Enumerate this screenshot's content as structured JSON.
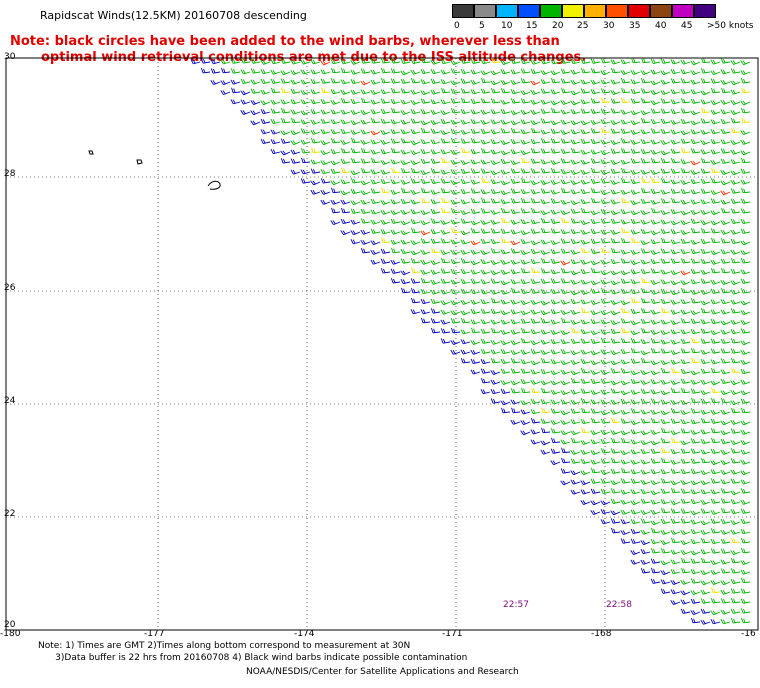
{
  "title": "Rapidscat Winds(12.5KM) 20160708 descending",
  "note": {
    "line1": "Note: black circles have been added to the wind barbs, wherever less than",
    "line2": "optimal wind retrieval conditions are met due to the ISS altitude changes."
  },
  "colorbar": {
    "labels": [
      "0",
      "5",
      "10",
      "15",
      "20",
      "25",
      "30",
      "35",
      "40",
      "45",
      ">50 knots"
    ],
    "colors": [
      "#3a3a3a",
      "#8a8a8a",
      "#00b4ff",
      "#0050ff",
      "#00b400",
      "#f0f000",
      "#ffb000",
      "#ff5000",
      "#e00000",
      "#8b4513",
      "#c000c0",
      "#400080"
    ]
  },
  "axes": {
    "lat_labels": [
      "30",
      "28",
      "26",
      "24",
      "22",
      "20"
    ],
    "lon_labels": [
      "-180",
      "-177",
      "-174",
      "-171",
      "-168",
      "-16"
    ]
  },
  "times": [
    "22:57",
    "22:58"
  ],
  "footnote": {
    "line1": "Note: 1) Times are GMT 2)Times along bottom correspond to measurement at 30N",
    "line2": "      3)Data buffer is 22 hrs from 20160708 4) Black wind barbs indicate possible contamination"
  },
  "credit": "NOAA/NESDIS/Center for Satellite Applications and Research",
  "colors": {
    "barb_main": "#00b400",
    "barb_edge": "#0000c0",
    "barb_yellow": "#f0e000",
    "barb_red": "#ff3000",
    "barb_magenta": "#e000a0"
  }
}
